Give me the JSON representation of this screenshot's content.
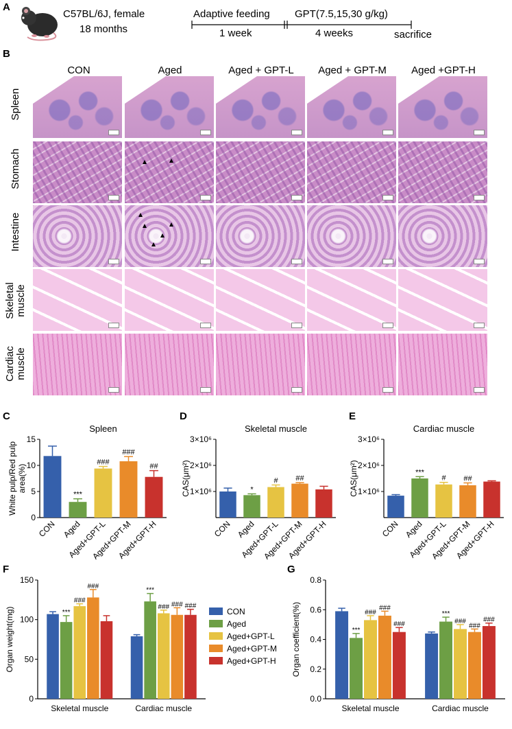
{
  "panel_letters": {
    "a": "A",
    "b": "B",
    "c": "C",
    "d": "D",
    "e": "E",
    "f": "F",
    "g": "G"
  },
  "timeline": {
    "strain": "C57BL/6J, female",
    "age": "18 months",
    "adaptive_feeding": "Adaptive feeding",
    "adaptive_duration": "1 week",
    "treatment": "GPT(7.5,15,30 g/kg)",
    "treatment_duration": "4 weeks",
    "end": "sacrifice"
  },
  "columns": [
    "CON",
    "Aged",
    "Aged + GPT-L",
    "Aged + GPT-M",
    "Aged +GPT-H"
  ],
  "rows": [
    {
      "line1": "Spleen",
      "line2": ""
    },
    {
      "line1": "Stomach",
      "line2": ""
    },
    {
      "line1": "Intestine",
      "line2": ""
    },
    {
      "line1": "Skeletal",
      "line2": "muscle"
    },
    {
      "line1": "Cardiac",
      "line2": "muscle"
    }
  ],
  "colors": {
    "CON": "#3560ab",
    "Aged": "#6d9f45",
    "GPT-L": "#e6c342",
    "GPT-M": "#e98b2a",
    "GPT-H": "#c8322d"
  },
  "chart_data": [
    {
      "panel": "C",
      "type": "bar",
      "title": "Spleen",
      "ylabel": "White pulp/Red pulp area(%)",
      "ylabel_line1": "White pulp/Red pulp",
      "ylabel_line2": "area(%)",
      "categories": [
        "CON",
        "Aged",
        "Aged+GPT-L",
        "Aged+GPT-M",
        "Aged+GPT-H"
      ],
      "values": [
        11.8,
        3.0,
        9.4,
        10.8,
        7.8
      ],
      "errors": [
        1.9,
        0.6,
        0.4,
        0.9,
        1.2
      ],
      "annotations": [
        "",
        "***",
        "###",
        "###",
        "##"
      ],
      "ylim": [
        0,
        15
      ],
      "ticks": [
        "0",
        "5",
        "10",
        "15"
      ]
    },
    {
      "panel": "D",
      "type": "bar",
      "title": "Skeletal muscle",
      "ylabel": "CAS(μm²)",
      "categories": [
        "CON",
        "Aged",
        "Aged+GPT-L",
        "Aged+GPT-M",
        "Aged+GPT-H"
      ],
      "values": [
        1000000,
        860000,
        1170000,
        1300000,
        1080000
      ],
      "errors": [
        130000,
        50000,
        80000,
        40000,
        120000
      ],
      "annotations": [
        "",
        "*",
        "#",
        "##",
        ""
      ],
      "ylim": [
        0,
        3000000
      ],
      "ticks": [
        "1×10⁶",
        "2×10⁶",
        "3×10⁶"
      ]
    },
    {
      "panel": "E",
      "type": "bar",
      "title": "Cardiac muscle",
      "ylabel": "CAS(μm²)",
      "categories": [
        "CON",
        "Aged",
        "Aged+GPT-L",
        "Aged+GPT-M",
        "Aged+GPT-H"
      ],
      "values": [
        840000,
        1500000,
        1270000,
        1240000,
        1380000
      ],
      "errors": [
        40000,
        70000,
        80000,
        90000,
        30000
      ],
      "annotations": [
        "",
        "***",
        "#",
        "##",
        ""
      ],
      "ylim": [
        0,
        3000000
      ],
      "ticks": [
        "1×10⁶",
        "2×10⁶",
        "3×10⁶"
      ]
    },
    {
      "panel": "F",
      "type": "bar",
      "ylabel": "Organ weight(mg)",
      "groups": [
        "Skeletal muscle",
        "Cardiac muscle"
      ],
      "series": [
        {
          "name": "CON",
          "values": [
            107,
            79
          ],
          "errors": [
            3,
            2
          ],
          "annotations": [
            "",
            ""
          ]
        },
        {
          "name": "Aged",
          "values": [
            97,
            123
          ],
          "errors": [
            8,
            10
          ],
          "annotations": [
            "***",
            "***"
          ]
        },
        {
          "name": "Aged+GPT-L",
          "values": [
            117,
            108
          ],
          "errors": [
            3,
            4
          ],
          "annotations": [
            "###",
            "###"
          ]
        },
        {
          "name": "Aged+GPT-M",
          "values": [
            128,
            106
          ],
          "errors": [
            10,
            9
          ],
          "annotations": [
            "###",
            "###"
          ]
        },
        {
          "name": "Aged+GPT-H",
          "values": [
            98,
            106
          ],
          "errors": [
            7,
            7
          ],
          "annotations": [
            "",
            "###"
          ]
        }
      ],
      "ylim": [
        0,
        150
      ],
      "ticks": [
        "0",
        "50",
        "100",
        "150"
      ],
      "legend": "right"
    },
    {
      "panel": "G",
      "type": "bar",
      "ylabel": "Organ coefficient(%)",
      "groups": [
        "Skeletal muscle",
        "Cardiac muscle"
      ],
      "series": [
        {
          "name": "CON",
          "values": [
            0.59,
            0.44
          ],
          "errors": [
            0.02,
            0.01
          ],
          "annotations": [
            "",
            ""
          ]
        },
        {
          "name": "Aged",
          "values": [
            0.41,
            0.52
          ],
          "errors": [
            0.03,
            0.03
          ],
          "annotations": [
            "***",
            "***"
          ]
        },
        {
          "name": "Aged+GPT-L",
          "values": [
            0.53,
            0.47
          ],
          "errors": [
            0.03,
            0.03
          ],
          "annotations": [
            "###",
            "###"
          ]
        },
        {
          "name": "Aged+GPT-M",
          "values": [
            0.56,
            0.45
          ],
          "errors": [
            0.03,
            0.02
          ],
          "annotations": [
            "###",
            "###"
          ]
        },
        {
          "name": "Aged+GPT-H",
          "values": [
            0.45,
            0.49
          ],
          "errors": [
            0.03,
            0.02
          ],
          "annotations": [
            "###",
            "###"
          ]
        }
      ],
      "ylim": [
        0,
        0.8
      ],
      "ticks": [
        "0.0",
        "0.2",
        "0.4",
        "0.6",
        "0.8"
      ]
    }
  ]
}
